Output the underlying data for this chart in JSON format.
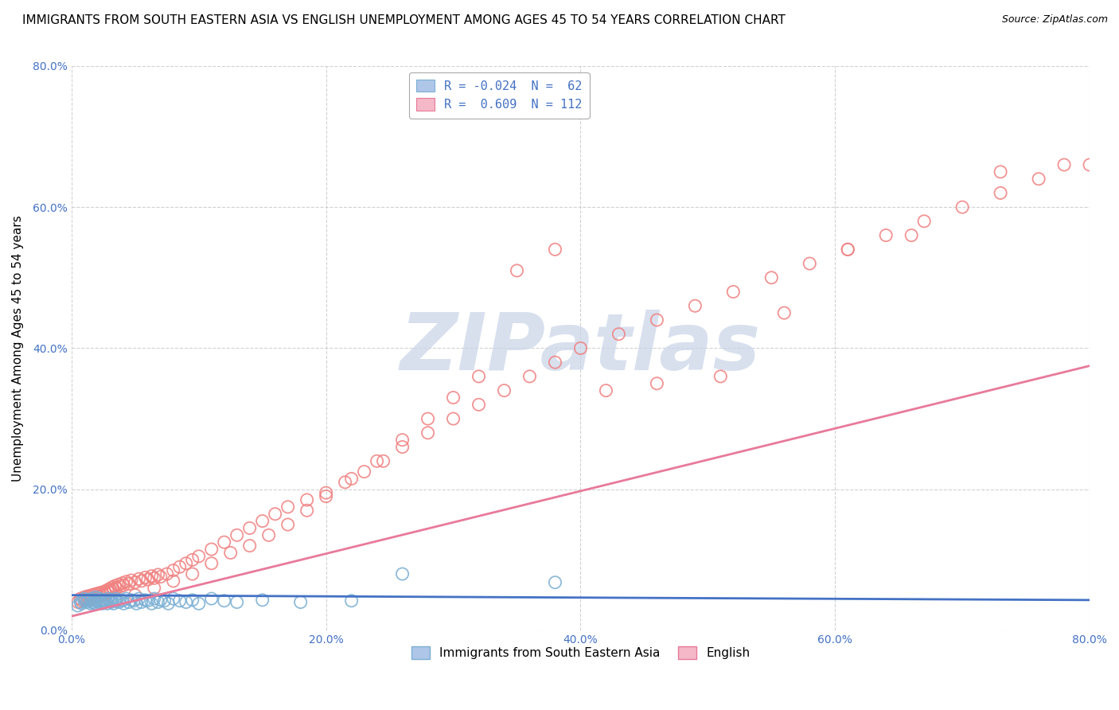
{
  "title": "IMMIGRANTS FROM SOUTH EASTERN ASIA VS ENGLISH UNEMPLOYMENT AMONG AGES 45 TO 54 YEARS CORRELATION CHART",
  "source": "Source: ZipAtlas.com",
  "ylabel": "Unemployment Among Ages 45 to 54 years",
  "watermark": "ZIPatlas",
  "legend_top": [
    {
      "label": "R = -0.024  N =  62",
      "fc": "#aec6e8",
      "ec": "#7bafd4"
    },
    {
      "label": "R =  0.609  N = 112",
      "fc": "#f4b8c8",
      "ec": "#e87a9a"
    }
  ],
  "legend_bottom": [
    "Immigrants from South Eastern Asia",
    "English"
  ],
  "xlim": [
    0.0,
    0.8
  ],
  "ylim": [
    0.0,
    0.8
  ],
  "xticks": [
    0.0,
    0.2,
    0.4,
    0.6,
    0.8
  ],
  "yticks": [
    0.0,
    0.2,
    0.4,
    0.6,
    0.8
  ],
  "blue_scatter_x": [
    0.005,
    0.007,
    0.008,
    0.01,
    0.01,
    0.012,
    0.013,
    0.015,
    0.015,
    0.016,
    0.017,
    0.018,
    0.018,
    0.019,
    0.02,
    0.021,
    0.022,
    0.023,
    0.024,
    0.025,
    0.026,
    0.027,
    0.028,
    0.029,
    0.03,
    0.031,
    0.032,
    0.033,
    0.034,
    0.035,
    0.037,
    0.038,
    0.04,
    0.041,
    0.043,
    0.045,
    0.047,
    0.049,
    0.051,
    0.053,
    0.055,
    0.058,
    0.06,
    0.063,
    0.065,
    0.068,
    0.07,
    0.073,
    0.076,
    0.08,
    0.085,
    0.09,
    0.095,
    0.1,
    0.11,
    0.12,
    0.13,
    0.15,
    0.18,
    0.22,
    0.26,
    0.38
  ],
  "blue_scatter_y": [
    0.035,
    0.04,
    0.038,
    0.042,
    0.045,
    0.04,
    0.043,
    0.038,
    0.042,
    0.045,
    0.04,
    0.038,
    0.043,
    0.047,
    0.042,
    0.04,
    0.045,
    0.042,
    0.038,
    0.043,
    0.04,
    0.042,
    0.038,
    0.045,
    0.042,
    0.04,
    0.043,
    0.038,
    0.042,
    0.045,
    0.04,
    0.043,
    0.042,
    0.038,
    0.045,
    0.04,
    0.043,
    0.042,
    0.038,
    0.045,
    0.04,
    0.043,
    0.042,
    0.038,
    0.045,
    0.04,
    0.043,
    0.042,
    0.038,
    0.045,
    0.042,
    0.04,
    0.043,
    0.038,
    0.045,
    0.042,
    0.04,
    0.043,
    0.04,
    0.042,
    0.08,
    0.068
  ],
  "pink_scatter_x": [
    0.005,
    0.007,
    0.008,
    0.01,
    0.011,
    0.012,
    0.013,
    0.014,
    0.015,
    0.016,
    0.017,
    0.018,
    0.019,
    0.02,
    0.021,
    0.022,
    0.023,
    0.024,
    0.025,
    0.026,
    0.027,
    0.028,
    0.029,
    0.03,
    0.031,
    0.032,
    0.033,
    0.034,
    0.035,
    0.037,
    0.038,
    0.04,
    0.041,
    0.043,
    0.045,
    0.047,
    0.05,
    0.053,
    0.055,
    0.058,
    0.06,
    0.063,
    0.065,
    0.068,
    0.07,
    0.075,
    0.08,
    0.085,
    0.09,
    0.095,
    0.1,
    0.11,
    0.12,
    0.13,
    0.14,
    0.15,
    0.16,
    0.17,
    0.185,
    0.2,
    0.215,
    0.23,
    0.245,
    0.26,
    0.28,
    0.3,
    0.32,
    0.34,
    0.36,
    0.38,
    0.4,
    0.43,
    0.46,
    0.49,
    0.52,
    0.55,
    0.58,
    0.61,
    0.64,
    0.67,
    0.7,
    0.73,
    0.76,
    0.8,
    0.035,
    0.05,
    0.065,
    0.08,
    0.095,
    0.11,
    0.125,
    0.14,
    0.155,
    0.17,
    0.185,
    0.2,
    0.22,
    0.24,
    0.26,
    0.28,
    0.3,
    0.32,
    0.35,
    0.38,
    0.42,
    0.46,
    0.51,
    0.56,
    0.61,
    0.66,
    0.73,
    0.78
  ],
  "pink_scatter_y": [
    0.04,
    0.045,
    0.042,
    0.047,
    0.043,
    0.048,
    0.044,
    0.049,
    0.045,
    0.05,
    0.046,
    0.051,
    0.047,
    0.052,
    0.048,
    0.053,
    0.049,
    0.054,
    0.05,
    0.055,
    0.052,
    0.057,
    0.054,
    0.059,
    0.056,
    0.061,
    0.058,
    0.063,
    0.06,
    0.065,
    0.062,
    0.067,
    0.064,
    0.069,
    0.066,
    0.071,
    0.068,
    0.073,
    0.07,
    0.075,
    0.072,
    0.077,
    0.074,
    0.079,
    0.076,
    0.08,
    0.085,
    0.09,
    0.095,
    0.1,
    0.105,
    0.115,
    0.125,
    0.135,
    0.145,
    0.155,
    0.165,
    0.175,
    0.185,
    0.195,
    0.21,
    0.225,
    0.24,
    0.26,
    0.28,
    0.3,
    0.32,
    0.34,
    0.36,
    0.38,
    0.4,
    0.42,
    0.44,
    0.46,
    0.48,
    0.5,
    0.52,
    0.54,
    0.56,
    0.58,
    0.6,
    0.62,
    0.64,
    0.66,
    0.042,
    0.05,
    0.06,
    0.07,
    0.08,
    0.095,
    0.11,
    0.12,
    0.135,
    0.15,
    0.17,
    0.19,
    0.215,
    0.24,
    0.27,
    0.3,
    0.33,
    0.36,
    0.51,
    0.54,
    0.34,
    0.35,
    0.36,
    0.45,
    0.54,
    0.56,
    0.65,
    0.66
  ],
  "blue_line_x": [
    0.0,
    0.8
  ],
  "blue_line_y": [
    0.05,
    0.043
  ],
  "pink_line_x": [
    0.0,
    0.8
  ],
  "pink_line_y": [
    0.02,
    0.375
  ],
  "title_fontsize": 11,
  "source_fontsize": 9,
  "axis_label_fontsize": 11,
  "tick_fontsize": 10,
  "scatter_size": 120,
  "blue_scatter_color": "#7bafd4",
  "pink_scatter_color": "#f08080",
  "blue_line_color": "#4472c4",
  "pink_line_color": "#e87a9a",
  "grid_color": "#cccccc",
  "background_color": "#ffffff",
  "watermark_color": "#c8d4e8",
  "watermark_fontsize": 72
}
